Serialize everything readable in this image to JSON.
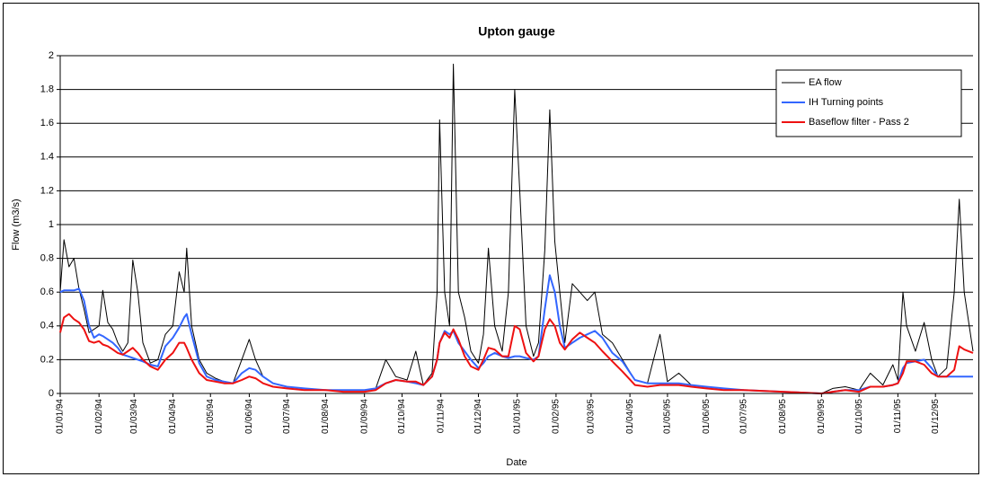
{
  "chart_data": {
    "type": "line",
    "title": "Upton gauge",
    "x_label": "Date",
    "y_label": "Flow (m3/s)",
    "x": [
      "01/01/94",
      "04/01/94",
      "08/01/94",
      "12/01/94",
      "16/01/94",
      "20/01/94",
      "24/01/94",
      "28/01/94",
      "01/02/94",
      "04/02/94",
      "08/02/94",
      "12/02/94",
      "16/02/94",
      "20/02/94",
      "24/02/94",
      "28/02/94",
      "04/03/94",
      "08/03/94",
      "14/03/94",
      "20/03/94",
      "26/03/94",
      "01/04/94",
      "06/04/94",
      "10/04/94",
      "12/04/94",
      "16/04/94",
      "22/04/94",
      "28/04/94",
      "05/05/94",
      "12/05/94",
      "19/05/94",
      "26/05/94",
      "01/06/94",
      "06/06/94",
      "12/06/94",
      "20/06/94",
      "01/07/94",
      "15/07/94",
      "01/08/94",
      "15/08/94",
      "01/09/94",
      "10/09/94",
      "18/09/94",
      "26/09/94",
      "05/10/94",
      "12/10/94",
      "18/10/94",
      "25/10/94",
      "29/10/94",
      "31/10/94",
      "04/11/94",
      "08/11/94",
      "11/11/94",
      "15/11/94",
      "20/11/94",
      "25/11/94",
      "01/12/94",
      "05/12/94",
      "09/12/94",
      "14/12/94",
      "20/12/94",
      "25/12/94",
      "30/12/94",
      "03/01/95",
      "08/01/95",
      "14/01/95",
      "18/01/95",
      "23/01/95",
      "27/01/95",
      "31/01/95",
      "04/02/95",
      "08/02/95",
      "14/02/95",
      "20/02/95",
      "26/02/95",
      "04/03/95",
      "10/03/95",
      "18/03/95",
      "26/03/95",
      "05/04/95",
      "15/04/95",
      "25/04/95",
      "01/05/95",
      "10/05/95",
      "20/05/95",
      "01/06/95",
      "15/06/95",
      "01/07/95",
      "01/08/95",
      "01/09/95",
      "10/09/95",
      "20/09/95",
      "01/10/95",
      "10/10/95",
      "20/10/95",
      "28/10/95",
      "01/11/95",
      "05/11/95",
      "08/11/95",
      "15/11/95",
      "22/11/95",
      "28/11/95",
      "03/12/95",
      "10/12/95",
      "16/12/95",
      "20/12/95",
      "24/12/95",
      "31/12/95"
    ],
    "series": [
      {
        "name": "EA flow",
        "color": "#000000",
        "width": 1,
        "values": [
          0.6,
          0.91,
          0.75,
          0.8,
          0.62,
          0.5,
          0.36,
          0.38,
          0.4,
          0.61,
          0.42,
          0.38,
          0.3,
          0.25,
          0.3,
          0.79,
          0.6,
          0.3,
          0.18,
          0.2,
          0.35,
          0.4,
          0.72,
          0.6,
          0.86,
          0.4,
          0.2,
          0.12,
          0.09,
          0.07,
          0.06,
          0.2,
          0.32,
          0.2,
          0.1,
          0.06,
          0.04,
          0.03,
          0.02,
          0.02,
          0.02,
          0.03,
          0.2,
          0.1,
          0.08,
          0.25,
          0.05,
          0.12,
          0.6,
          1.62,
          0.6,
          0.4,
          1.95,
          0.6,
          0.45,
          0.25,
          0.18,
          0.35,
          0.86,
          0.4,
          0.25,
          0.6,
          1.8,
          1.2,
          0.4,
          0.22,
          0.3,
          0.85,
          1.68,
          0.9,
          0.6,
          0.3,
          0.65,
          0.6,
          0.55,
          0.6,
          0.35,
          0.3,
          0.2,
          0.08,
          0.06,
          0.35,
          0.07,
          0.12,
          0.05,
          0.04,
          0.03,
          0.02,
          0.01,
          0,
          0.03,
          0.04,
          0.02,
          0.12,
          0.05,
          0.17,
          0.08,
          0.6,
          0.4,
          0.25,
          0.42,
          0.2,
          0.1,
          0.15,
          0.6,
          1.15,
          0.6,
          0.25
        ]
      },
      {
        "name": "IH Turning points",
        "color": "#3366ff",
        "width": 2,
        "values": [
          0.6,
          0.61,
          0.61,
          0.61,
          0.62,
          0.55,
          0.4,
          0.33,
          0.35,
          0.34,
          0.32,
          0.3,
          0.27,
          0.23,
          0.22,
          0.21,
          0.2,
          0.19,
          0.17,
          0.16,
          0.28,
          0.33,
          0.39,
          0.45,
          0.47,
          0.35,
          0.18,
          0.1,
          0.08,
          0.07,
          0.06,
          0.12,
          0.15,
          0.14,
          0.1,
          0.06,
          0.04,
          0.03,
          0.02,
          0.02,
          0.02,
          0.03,
          0.06,
          0.08,
          0.07,
          0.06,
          0.05,
          0.1,
          0.2,
          0.3,
          0.37,
          0.35,
          0.37,
          0.3,
          0.25,
          0.2,
          0.15,
          0.18,
          0.22,
          0.24,
          0.22,
          0.21,
          0.22,
          0.22,
          0.21,
          0.2,
          0.22,
          0.5,
          0.7,
          0.6,
          0.4,
          0.27,
          0.3,
          0.33,
          0.35,
          0.37,
          0.33,
          0.24,
          0.19,
          0.08,
          0.06,
          0.06,
          0.06,
          0.06,
          0.05,
          0.04,
          0.03,
          0.02,
          0.01,
          0,
          0.01,
          0.02,
          0.02,
          0.04,
          0.04,
          0.05,
          0.06,
          0.15,
          0.18,
          0.19,
          0.2,
          0.15,
          0.1,
          0.1,
          0.1,
          0.1,
          0.1,
          0.1
        ]
      },
      {
        "name": "Baseflow filter - Pass 2",
        "color": "#ee1111",
        "width": 2,
        "values": [
          0.36,
          0.45,
          0.47,
          0.44,
          0.42,
          0.38,
          0.31,
          0.3,
          0.31,
          0.29,
          0.28,
          0.26,
          0.24,
          0.23,
          0.25,
          0.27,
          0.24,
          0.2,
          0.16,
          0.14,
          0.2,
          0.24,
          0.3,
          0.3,
          0.27,
          0.2,
          0.12,
          0.08,
          0.07,
          0.06,
          0.06,
          0.08,
          0.1,
          0.09,
          0.06,
          0.04,
          0.03,
          0.02,
          0.02,
          0.01,
          0.01,
          0.02,
          0.06,
          0.08,
          0.07,
          0.07,
          0.05,
          0.1,
          0.2,
          0.3,
          0.36,
          0.33,
          0.38,
          0.32,
          0.22,
          0.16,
          0.14,
          0.2,
          0.27,
          0.26,
          0.22,
          0.22,
          0.4,
          0.38,
          0.24,
          0.19,
          0.22,
          0.38,
          0.44,
          0.4,
          0.3,
          0.26,
          0.32,
          0.36,
          0.33,
          0.3,
          0.25,
          0.19,
          0.13,
          0.05,
          0.04,
          0.05,
          0.05,
          0.05,
          0.04,
          0.03,
          0.02,
          0.02,
          0.01,
          0,
          0.01,
          0.02,
          0.01,
          0.04,
          0.04,
          0.05,
          0.06,
          0.12,
          0.19,
          0.19,
          0.17,
          0.12,
          0.1,
          0.1,
          0.14,
          0.28,
          0.26,
          0.24
        ]
      }
    ],
    "xlim": [
      "01/01/94",
      "31/12/95"
    ],
    "xticks": [
      "01/01/94",
      "01/02/94",
      "01/03/94",
      "01/04/94",
      "01/05/94",
      "01/06/94",
      "01/07/94",
      "01/08/94",
      "01/09/94",
      "01/10/94",
      "01/11/94",
      "01/12/94",
      "01/01/95",
      "01/02/95",
      "01/03/95",
      "01/04/95",
      "01/05/95",
      "01/06/95",
      "01/07/95",
      "01/08/95",
      "01/09/95",
      "01/10/95",
      "01/11/95",
      "01/12/95"
    ],
    "ylim": [
      0,
      2
    ],
    "yticks": [
      0,
      0.2,
      0.4,
      0.6,
      0.8,
      1,
      1.2,
      1.4,
      1.6,
      1.8,
      2
    ],
    "grid": true,
    "legend": "top-right"
  }
}
